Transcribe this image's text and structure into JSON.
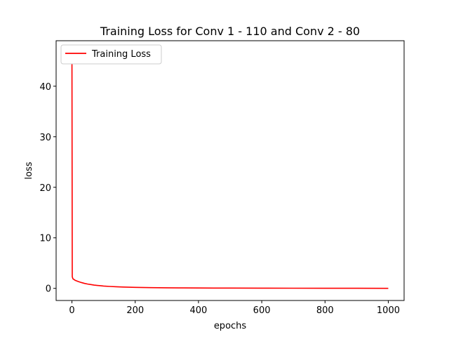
{
  "chart_data": {
    "type": "line",
    "title": "Training Loss for Conv 1 - 110 and Conv 2 - 80",
    "xlabel": "epochs",
    "ylabel": "loss",
    "xlim": [
      -50,
      1050
    ],
    "ylim": [
      -2.4,
      49
    ],
    "xticks": [
      0,
      200,
      400,
      600,
      800,
      1000
    ],
    "yticks": [
      0,
      10,
      20,
      30,
      40
    ],
    "grid": false,
    "legend": {
      "position": "top-left",
      "entries": [
        "Training Loss"
      ]
    },
    "series": [
      {
        "name": "Training Loss",
        "color": "#ff0000",
        "x": [
          0,
          1,
          3,
          10,
          20,
          30,
          40,
          50,
          60,
          70,
          80,
          90,
          100,
          120,
          140,
          160,
          180,
          200,
          250,
          300,
          350,
          400,
          450,
          500,
          600,
          700,
          800,
          900,
          1000
        ],
        "y": [
          47.0,
          2.3,
          1.9,
          1.6,
          1.35,
          1.15,
          0.98,
          0.85,
          0.75,
          0.65,
          0.58,
          0.52,
          0.46,
          0.38,
          0.32,
          0.27,
          0.23,
          0.2,
          0.15,
          0.11,
          0.09,
          0.07,
          0.06,
          0.05,
          0.04,
          0.03,
          0.02,
          0.02,
          0.01
        ]
      }
    ]
  }
}
